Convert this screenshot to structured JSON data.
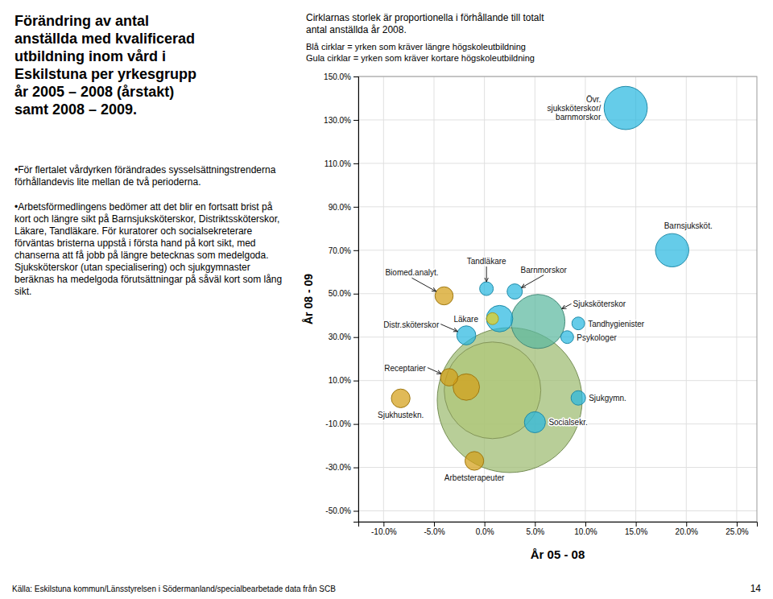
{
  "chart_data": {
    "type": "scatter",
    "title": "Cirklarnas storlek är proportionella i förhållande till totalt\nantal anställda år 2008.",
    "subtitles": [
      "Blå cirklar = yrken som kräver längre högskoleutbildning",
      "Gula cirklar = yrken som kräver kortare högskoleutbildning"
    ],
    "xlabel": "År 05 - 08",
    "ylabel": "År 08 - 09",
    "x": [
      0.025,
      0.008,
      0.053,
      0.14,
      0.186,
      0.015,
      -0.018,
      0.05,
      -0.018,
      -0.083,
      -0.01,
      -0.04,
      -0.035,
      0.03,
      0.093,
      0.002,
      0.093,
      0.082,
      0.008
    ],
    "values": [
      0.01,
      0.055,
      0.372,
      1.355,
      0.7,
      0.385,
      0.07,
      -0.092,
      0.308,
      0.018,
      -0.27,
      0.49,
      0.115,
      0.51,
      0.02,
      0.523,
      0.363,
      0.3,
      0.385
    ],
    "sizes": [
      18000,
      8000,
      2500,
      1600,
      950,
      600,
      600,
      380,
      310,
      300,
      300,
      280,
      260,
      200,
      180,
      160,
      140,
      140,
      120
    ],
    "colors": [
      "#9CBB70",
      "#B0C878",
      "#5BB8A0",
      "#29B8E0",
      "#29B8E0",
      "#29B8E0",
      "#D4A017",
      "#29B8E0",
      "#29B8E0",
      "#D4A017",
      "#D4A017",
      "#D4A017",
      "#D4A017",
      "#29B8E0",
      "#29B8E0",
      "#29B8E0",
      "#29B8E0",
      "#29B8E0",
      "#E8D020"
    ],
    "labels": [
      null,
      null,
      "Sjuksköterskor",
      "Övr.\nsjuksköterskor/\nbarnmorskor",
      "Barnsjuksköt.",
      "Läkare",
      null,
      "Socialsekr.",
      "Distr.sköterskor",
      "Sjukhustekn.",
      "Arbetsterapeuter",
      "Biomed.analyt.",
      "Receptarier",
      "Barnmorskor",
      "Sjukgymn.",
      "Tandläkare",
      "Tandhygienister",
      "Psykologer",
      null
    ],
    "xlim": [
      -0.125,
      0.27
    ],
    "ylim": [
      -0.55,
      1.5
    ],
    "xticks": [
      {
        "value": -0.1,
        "label": "-10.0%"
      },
      {
        "value": -0.05,
        "label": "-5.0%"
      },
      {
        "value": 0.0,
        "label": "0.0%"
      },
      {
        "value": 0.05,
        "label": "5.0%"
      },
      {
        "value": 0.1,
        "label": "10.0%"
      },
      {
        "value": 0.15,
        "label": "15.0%"
      },
      {
        "value": 0.2,
        "label": "20.0%"
      },
      {
        "value": 0.25,
        "label": "25.0%"
      }
    ],
    "yticks": [
      {
        "value": -0.5,
        "label": "-50.0%"
      },
      {
        "value": -0.3,
        "label": "-30.0%"
      },
      {
        "value": -0.1,
        "label": "-10.0%"
      },
      {
        "value": 0.1,
        "label": "10.0%"
      },
      {
        "value": 0.3,
        "label": "30.0%"
      },
      {
        "value": 0.5,
        "label": "50.0%"
      },
      {
        "value": 0.7,
        "label": "70.0%"
      },
      {
        "value": 0.9,
        "label": "90.0%"
      },
      {
        "value": 1.1,
        "label": "110.0%"
      },
      {
        "value": 1.3,
        "label": "130.0%"
      },
      {
        "value": 1.5,
        "label": "150.0%"
      }
    ],
    "grid": true
  },
  "left_text_title": "Förändring av antal\nanställda med kvalificerad\nutbildning inom vård i\nEskilstuna per yrkesgrupp\når 2005 – 2008 (årstakt)\nsamt 2008 – 2009.",
  "bullets": [
    "•För flertalet vårdyrken förändrades sysselsättningstrenderna förhållandevis lite mellan de två perioderna.",
    "•Arbetsförmedlingens bedömer att det blir en fortsatt brist på kort och längre sikt på Barnsjuksköterskor, Distriktssköterskor, Läkare, Tandläkare. För kuratorer och socialsekreterare förväntas bristerna uppstå i första hand på kort sikt, med chanserna att få jobb på längre betecknas som medelgoda. Sjuksköterskor (utan specialisering) och sjukgymnaster beräknas ha medelgoda förutsättningar  på såväl kort som lång sikt."
  ],
  "footer": "Källa: Eskilstuna kommun/Länsstyrelsen i Södermanland/specialbearbetade data från SCB",
  "page_num": "14"
}
